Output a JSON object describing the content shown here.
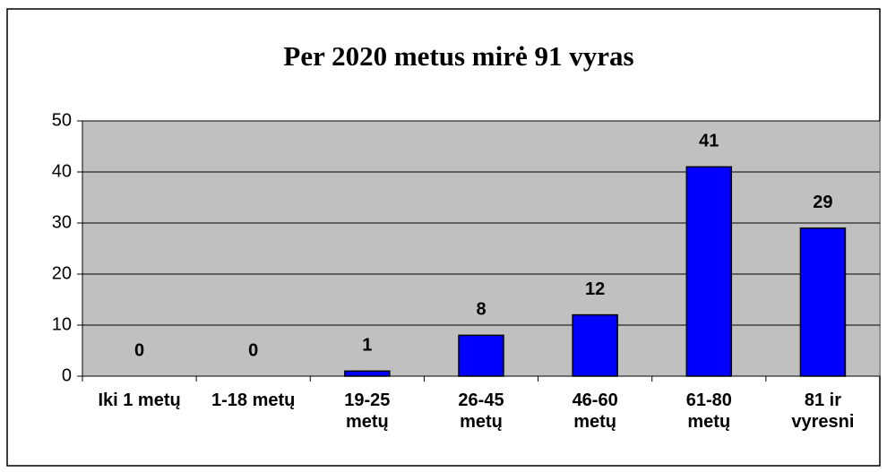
{
  "chart_data": {
    "type": "bar",
    "title": "Per 2020 metus mirė 91 vyras",
    "categories": [
      [
        "Iki 1 metų"
      ],
      [
        "1-18 metų"
      ],
      [
        "19-25",
        "metų"
      ],
      [
        "26-45",
        "metų"
      ],
      [
        "46-60",
        "metų"
      ],
      [
        "61-80",
        "metų"
      ],
      [
        "81 ir",
        "vyresni"
      ]
    ],
    "values": [
      0,
      0,
      1,
      8,
      12,
      41,
      29
    ],
    "color": "#0000ff",
    "ylim": [
      0,
      50
    ],
    "yticks": [
      0,
      10,
      20,
      30,
      40,
      50
    ],
    "grid": true
  }
}
